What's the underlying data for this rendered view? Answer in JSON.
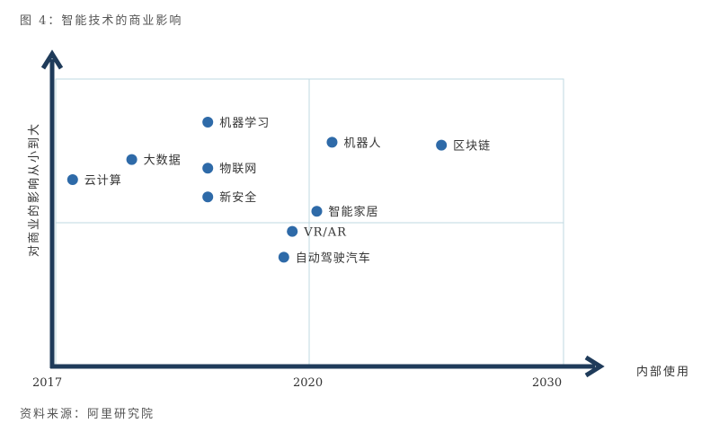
{
  "figure": {
    "title": "图 4：智能技术的商业影响",
    "source": "资料来源：阿里研究院"
  },
  "chart_data": {
    "type": "scatter",
    "xlabel": "内部使用",
    "ylabel": "对商业的影响从小到大",
    "x_ticks": [
      "2017",
      "2020",
      "2030"
    ],
    "xlim": [
      2017,
      2030
    ],
    "ylim": [
      0,
      10
    ],
    "grid": false,
    "quadrant_lines": true,
    "point_color": "#2e6aa8",
    "axis_color": "#1f3b5a",
    "points": [
      {
        "label": "机器学习",
        "x": 2018.8,
        "y": 8.5
      },
      {
        "label": "机器人",
        "x": 2020.9,
        "y": 7.8
      },
      {
        "label": "区块链",
        "x": 2025.2,
        "y": 7.7
      },
      {
        "label": "大数据",
        "x": 2017.9,
        "y": 7.2
      },
      {
        "label": "物联网",
        "x": 2018.8,
        "y": 6.9
      },
      {
        "label": "云计算",
        "x": 2017.2,
        "y": 6.5
      },
      {
        "label": "新安全",
        "x": 2018.8,
        "y": 5.9
      },
      {
        "label": "智能家居",
        "x": 2020.3,
        "y": 5.4
      },
      {
        "label": "VR/AR",
        "x": 2019.8,
        "y": 4.7
      },
      {
        "label": "自动驾驶汽车",
        "x": 2019.7,
        "y": 3.8
      }
    ]
  }
}
